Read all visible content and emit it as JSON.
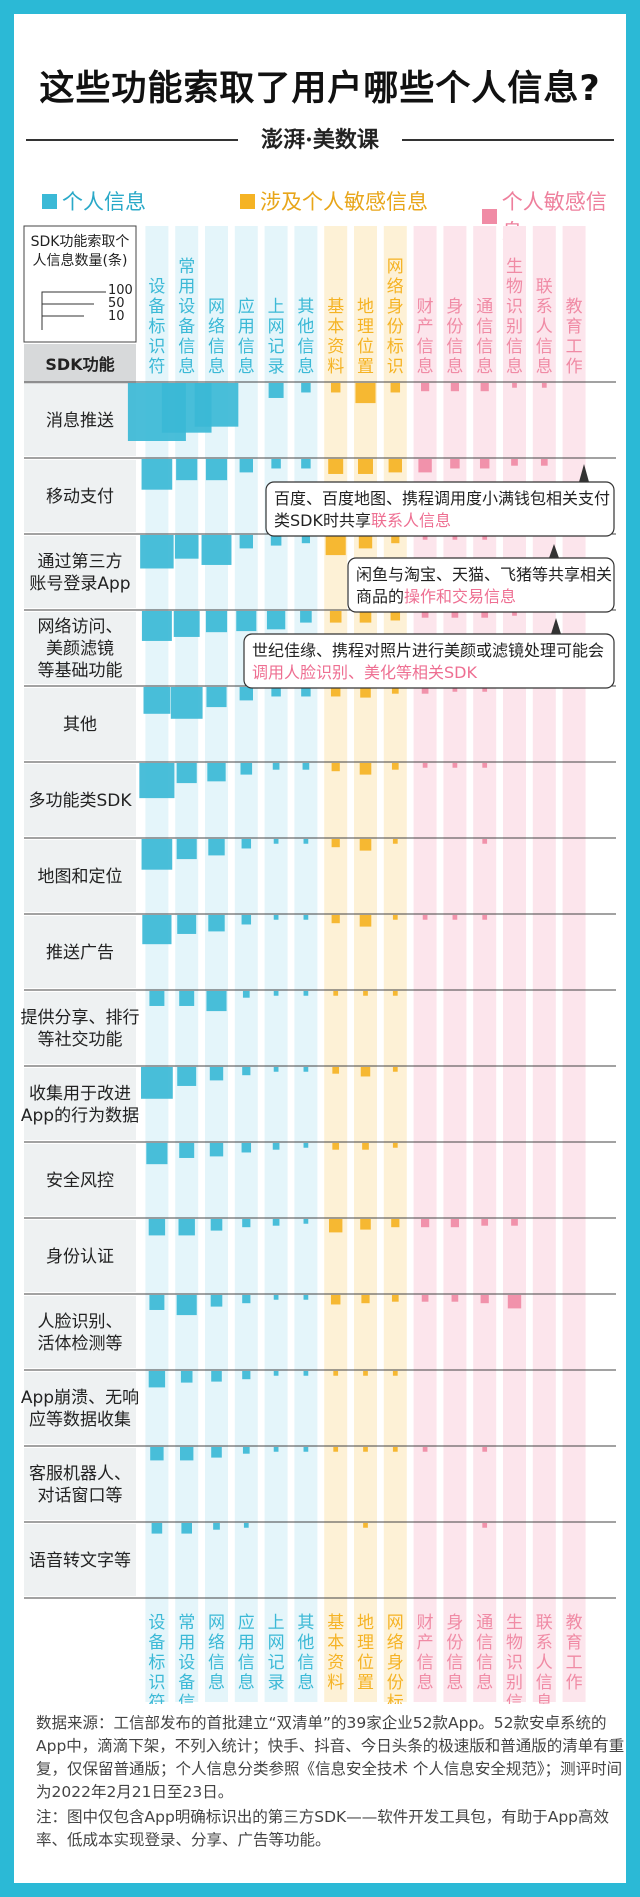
{
  "title": "这些功能索取了用户哪些个人信息?",
  "brand": "澎湃·美数课",
  "legend": [
    {
      "label": "个人信息",
      "color": "#3bb9d6"
    },
    {
      "label": "涉及个人敏感信息",
      "color": "#f5b324"
    },
    {
      "label": "个人敏感信息",
      "color": "#f08ba5"
    }
  ],
  "size_legend": {
    "title": "SDK功能索取个人信息数量(条)",
    "values": [
      "100",
      "50",
      "10"
    ]
  },
  "row_header": "SDK功能",
  "chart_data": {
    "type": "heatmap",
    "title": "这些功能索取了用户哪些个人信息?",
    "encoding": "square size = number of personal-information items requested (条)",
    "columns": [
      {
        "label": "设备标识符",
        "group": "个人信息"
      },
      {
        "label": "常用设备信息",
        "group": "个人信息"
      },
      {
        "label": "网络信息",
        "group": "个人信息"
      },
      {
        "label": "应用信息",
        "group": "个人信息"
      },
      {
        "label": "上网记录",
        "group": "个人信息"
      },
      {
        "label": "其他信息",
        "group": "个人信息"
      },
      {
        "label": "基本资料",
        "group": "涉及个人敏感信息"
      },
      {
        "label": "地理位置",
        "group": "涉及个人敏感信息"
      },
      {
        "label": "网络身份标识",
        "group": "涉及个人敏感信息"
      },
      {
        "label": "财产信息",
        "group": "个人敏感信息"
      },
      {
        "label": "身份信息",
        "group": "个人敏感信息"
      },
      {
        "label": "通信信息",
        "group": "个人敏感信息"
      },
      {
        "label": "生物识别信息",
        "group": "个人敏感信息"
      },
      {
        "label": "联系人信息",
        "group": "个人敏感信息"
      },
      {
        "label": "教育工作",
        "group": "个人敏感信息"
      }
    ],
    "rows": [
      {
        "label": "消息推送",
        "values": [
          150,
          110,
          85,
          0,
          10,
          4,
          4,
          18,
          4,
          3,
          3,
          3,
          1,
          1,
          0
        ]
      },
      {
        "label": "移动支付",
        "values": [
          42,
          20,
          20,
          8,
          4,
          4,
          10,
          10,
          8,
          8,
          4,
          4,
          2,
          2,
          0
        ]
      },
      {
        "label": "通过第三方账号登录App",
        "values": [
          50,
          25,
          40,
          8,
          5,
          3,
          18,
          8,
          3,
          1,
          1,
          1,
          0,
          0,
          0
        ]
      },
      {
        "label": "网络访问、美颜滤镜等基础功能",
        "values": [
          40,
          30,
          20,
          18,
          15,
          6,
          6,
          6,
          4,
          2,
          2,
          2,
          1,
          0,
          0
        ]
      },
      {
        "label": "其他",
        "values": [
          32,
          45,
          18,
          8,
          4,
          4,
          4,
          5,
          2,
          2,
          1,
          1,
          0,
          0,
          0
        ]
      },
      {
        "label": "多功能类SDK",
        "values": [
          55,
          18,
          15,
          6,
          2,
          2,
          3,
          6,
          2,
          1,
          1,
          1,
          0,
          0,
          0
        ]
      },
      {
        "label": "地图和定位",
        "values": [
          42,
          18,
          12,
          4,
          1,
          1,
          3,
          6,
          1,
          0,
          0,
          1,
          0,
          0,
          0
        ]
      },
      {
        "label": "推送广告",
        "values": [
          38,
          16,
          12,
          4,
          1,
          1,
          3,
          6,
          1,
          1,
          1,
          1,
          0,
          0,
          0
        ]
      },
      {
        "label": "提供分享、排行等社交功能",
        "values": [
          10,
          10,
          18,
          2,
          1,
          1,
          1,
          1,
          1,
          0,
          0,
          0,
          0,
          0,
          0
        ]
      },
      {
        "label": "收集用于改进App的行为数据",
        "values": [
          45,
          16,
          8,
          3,
          1,
          1,
          2,
          4,
          1,
          0,
          0,
          0,
          0,
          0,
          0
        ]
      },
      {
        "label": "安全风控",
        "values": [
          20,
          10,
          8,
          4,
          2,
          1,
          2,
          2,
          1,
          0,
          0,
          0,
          0,
          0,
          0
        ]
      },
      {
        "label": "身份认证",
        "values": [
          12,
          12,
          6,
          3,
          2,
          1,
          8,
          5,
          3,
          3,
          3,
          2,
          2,
          0,
          0
        ]
      },
      {
        "label": "人脸识别、活体检测等",
        "values": [
          10,
          18,
          6,
          3,
          1,
          1,
          4,
          3,
          2,
          2,
          2,
          3,
          8,
          0,
          0
        ]
      },
      {
        "label": "App崩溃、无响应等数据收集",
        "values": [
          12,
          6,
          5,
          3,
          1,
          1,
          1,
          1,
          1,
          0,
          0,
          0,
          0,
          0,
          0
        ]
      },
      {
        "label": "客服机器人、对话窗口等",
        "values": [
          8,
          8,
          5,
          2,
          1,
          1,
          1,
          1,
          1,
          1,
          0,
          1,
          0,
          0,
          0
        ]
      },
      {
        "label": "语音转文字等",
        "values": [
          5,
          5,
          2,
          1,
          0,
          0,
          0,
          1,
          0,
          0,
          0,
          1,
          0,
          0,
          0
        ]
      }
    ],
    "annotations": [
      {
        "row": "移动支付",
        "column": "联系人信息",
        "text": "百度、百度地图、携程调用度小满钱包相关支付类SDK时共享",
        "highlight": "联系人信息"
      },
      {
        "row": "通过第三方账号登录App",
        "column": "生物识别信息",
        "text": "闲鱼与淘宝、天猫、飞猪等共享相关商品的",
        "highlight": "操作和交易信息"
      },
      {
        "row": "网络访问、美颜滤镜等基础功能",
        "column": "网络身份标识",
        "text": "世纪佳缘、携程对照片进行美颜或滤镜处理可能会",
        "highlight": "调用人脸识别、美化等相关SDK"
      }
    ]
  },
  "source": {
    "data": "数据来源：工信部发布的首批建立“双清单”的39家企业52款App。52款安卓系统的App中，滴滴下架，不列入统计；快手、抖音、今日头条的极速版和普通版的清单有重复，仅保留普通版；个人信息分类参照《信息安全技术 个人信息安全规范》；测评时间为2022年2月21日至23日。",
    "note": "注：图中仅包含App明确标识出的第三方SDK——软件开发工具包，有助于App高效率、低成本实现登录、分享、广告等功能。"
  }
}
